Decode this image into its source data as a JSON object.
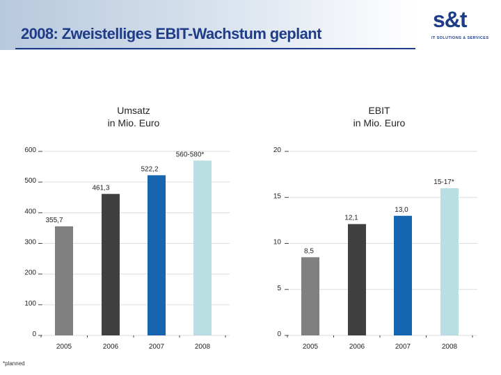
{
  "header": {
    "title": "2008: Zweistelliges EBIT-Wachstum geplant",
    "logo_text": "s&t",
    "logo_tagline": "IT SOLUTIONS & SERVICES"
  },
  "footnote": "*planned",
  "colors": {
    "title": "#1f3c88",
    "bar_2005": "#808080",
    "bar_2006": "#404040",
    "bar_2007": "#1565b0",
    "bar_2008": "#b9dfe3"
  },
  "chart_data": [
    {
      "type": "bar",
      "title_line1": "Umsatz",
      "title_line2": "in Mio. Euro",
      "categories": [
        "2005",
        "2006",
        "2007",
        "2008"
      ],
      "values": [
        355.7,
        461.3,
        522.2,
        570
      ],
      "data_labels": [
        "355,7",
        "461,3",
        "522,2",
        "560-580*"
      ],
      "yticks": [
        0,
        100,
        200,
        300,
        400,
        500,
        600
      ],
      "ylim": [
        0,
        600
      ],
      "grid": true
    },
    {
      "type": "bar",
      "title_line1": "EBIT",
      "title_line2": "in Mio. Euro",
      "categories": [
        "2005",
        "2006",
        "2007",
        "2008"
      ],
      "values": [
        8.5,
        12.1,
        13.0,
        16
      ],
      "data_labels": [
        "8,5",
        "12,1",
        "13,0",
        "15-17*"
      ],
      "yticks": [
        0,
        5,
        10,
        15,
        20
      ],
      "ylim": [
        0,
        20
      ],
      "grid": true
    }
  ]
}
